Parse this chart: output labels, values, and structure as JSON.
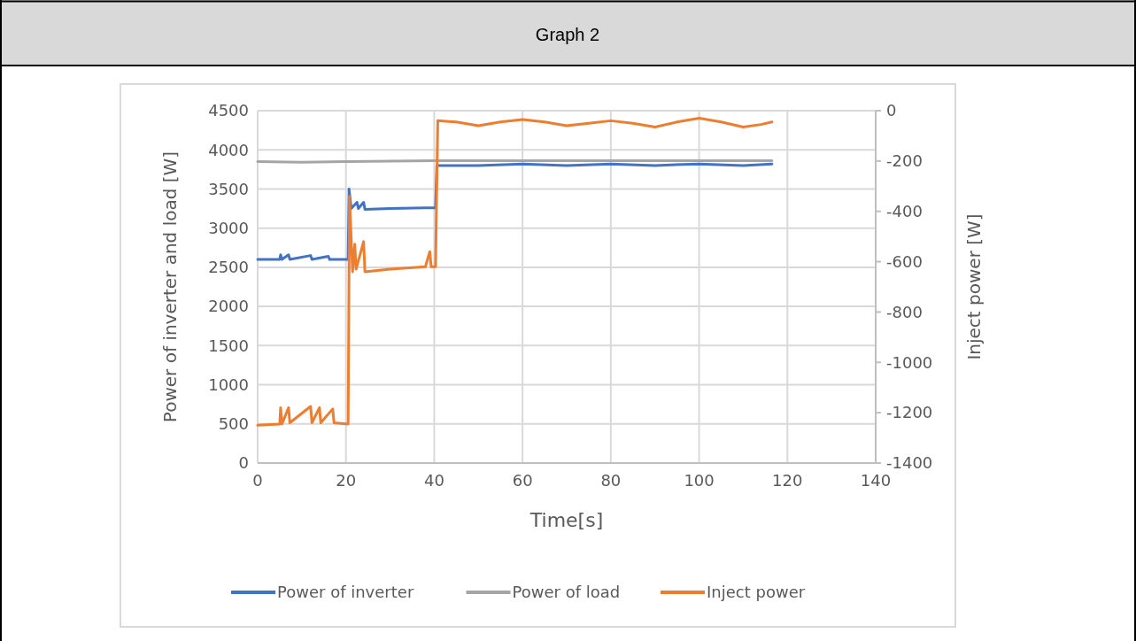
{
  "chart_data": {
    "type": "line",
    "title": "Graph 2",
    "xlabel": "Time[s]",
    "ylabel": "Power of inverter and load [W]",
    "y2label": "Inject power [W]",
    "xlim": [
      0,
      140
    ],
    "xticks": [
      0,
      20,
      40,
      60,
      80,
      100,
      120,
      140
    ],
    "ylim": [
      0,
      4500
    ],
    "yticks": [
      0,
      500,
      1000,
      1500,
      2000,
      2500,
      3000,
      3500,
      4000,
      4500
    ],
    "y2lim": [
      -1400,
      0
    ],
    "y2ticks": [
      -1400,
      -1200,
      -1000,
      -800,
      -600,
      -400,
      -200,
      0
    ],
    "grid": true,
    "legend": "bottom",
    "series": [
      {
        "name": "Power of inverter",
        "color": "#4472c4",
        "x": [
          0,
          5,
          5.2,
          5.5,
          7,
          7.3,
          12,
          12.3,
          16,
          16.3,
          20.5,
          20.7,
          21.2,
          22.5,
          22.8,
          24,
          24.3,
          30,
          38,
          40.3,
          40.6,
          50,
          60,
          70,
          80,
          90,
          100,
          110,
          116.5
        ],
        "values": [
          2600,
          2600,
          2660,
          2600,
          2660,
          2600,
          2650,
          2600,
          2640,
          2600,
          2600,
          3500,
          3250,
          3330,
          3250,
          3330,
          3240,
          3250,
          3260,
          3260,
          3800,
          3800,
          3820,
          3800,
          3820,
          3800,
          3820,
          3800,
          3820
        ]
      },
      {
        "name": "Power of load",
        "color": "#a5a5a5",
        "x": [
          0,
          10,
          20,
          40,
          60,
          80,
          100,
          116.5
        ],
        "values": [
          3850,
          3840,
          3850,
          3860,
          3860,
          3860,
          3860,
          3860
        ]
      },
      {
        "name": "Inject power",
        "color": "#ed7d31",
        "axis": "y2",
        "x": [
          0,
          5,
          5.2,
          5.5,
          7,
          7.3,
          12,
          12.3,
          14,
          14.3,
          17,
          17.3,
          20.5,
          20.8,
          21.5,
          22,
          22.3,
          24,
          24.3,
          30,
          38,
          39,
          39.3,
          40.3,
          40.8,
          45,
          50,
          55,
          60,
          65,
          70,
          75,
          80,
          85,
          90,
          95,
          100,
          105,
          110,
          114,
          116.5
        ],
        "values": [
          -1250,
          -1245,
          -1180,
          -1245,
          -1180,
          -1240,
          -1175,
          -1240,
          -1180,
          -1240,
          -1185,
          -1240,
          -1245,
          -340,
          -640,
          -530,
          -630,
          -520,
          -640,
          -630,
          -620,
          -560,
          -620,
          -620,
          -40,
          -45,
          -60,
          -45,
          -35,
          -45,
          -60,
          -50,
          -40,
          -50,
          -65,
          -45,
          -30,
          -45,
          -65,
          -55,
          -45
        ]
      }
    ]
  }
}
